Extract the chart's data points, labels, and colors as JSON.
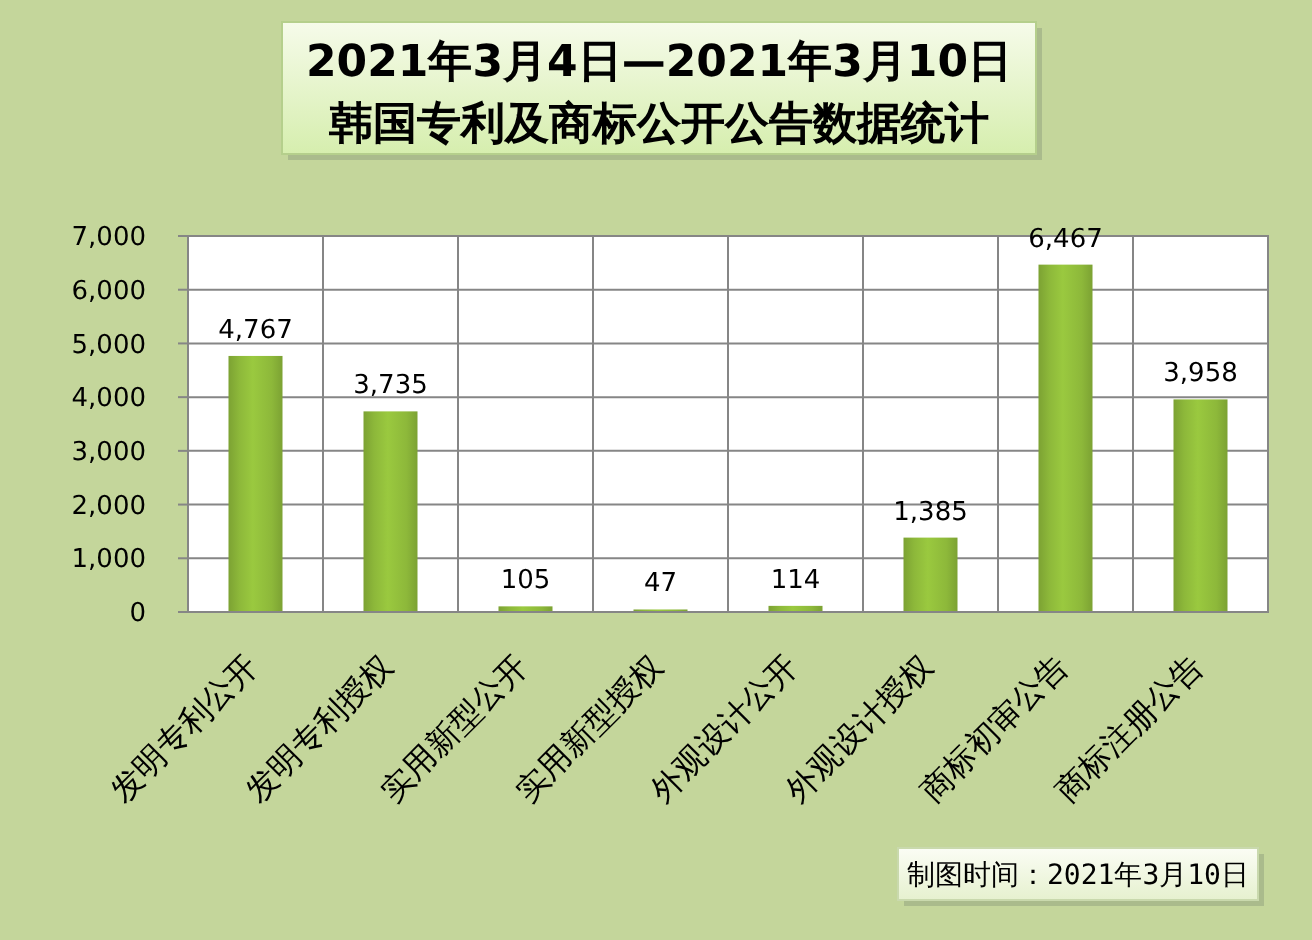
{
  "chart_data": {
    "type": "bar",
    "title": "2021年3月4日—2021年3月10日",
    "subtitle": "韩国专利及商标公开公告数据统计",
    "categories": [
      "发明专利公开",
      "发明专利授权",
      "实用新型公开",
      "实用新型授权",
      "外观设计公开",
      "外观设计授权",
      "商标初审公告",
      "商标注册公告"
    ],
    "values": [
      4767,
      3735,
      105,
      47,
      114,
      1385,
      6467,
      3958
    ],
    "value_labels": [
      "4,767",
      "3,735",
      "105",
      "47",
      "114",
      "1,385",
      "6,467",
      "3,958"
    ],
    "color": "#8db83a",
    "ylim": [
      0,
      7000
    ],
    "yticks": [
      {
        "value": 0,
        "label": "0"
      },
      {
        "value": 1000,
        "label": "1,000"
      },
      {
        "value": 2000,
        "label": "2,000"
      },
      {
        "value": 3000,
        "label": "3,000"
      },
      {
        "value": 4000,
        "label": "4,000"
      },
      {
        "value": 5000,
        "label": "5,000"
      },
      {
        "value": 6000,
        "label": "6,000"
      },
      {
        "value": 7000,
        "label": "7,000"
      }
    ],
    "grid": true,
    "annotations": [
      "制图时间：2021年3月10日"
    ]
  }
}
